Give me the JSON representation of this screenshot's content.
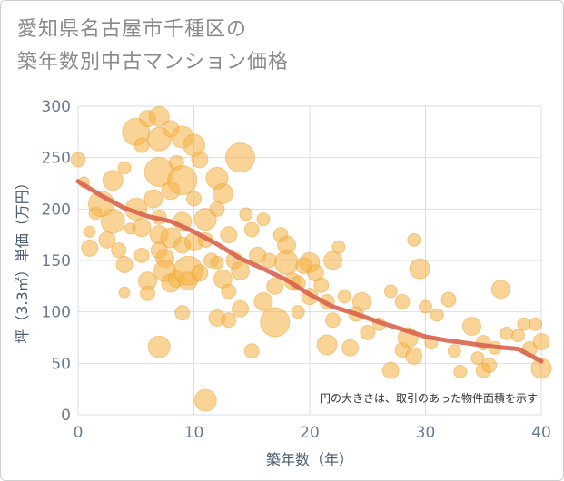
{
  "chart_data": {
    "type": "scatter",
    "title_line1": "愛知県名古屋市千種区の",
    "title_line2": "築年数別中古マンション価格",
    "xlabel": "築年数（年）",
    "ylabel": "坪（3.3㎡）単価（万円）",
    "xlim": [
      0,
      40
    ],
    "ylim": [
      0,
      300
    ],
    "x_ticks": [
      "0",
      "10",
      "20",
      "30",
      "40"
    ],
    "y_ticks": [
      "0",
      "50",
      "100",
      "150",
      "200",
      "250",
      "300"
    ],
    "grid": true,
    "annotation": "円の大きさは、取引のあった物件面積を示す",
    "colors": {
      "bubble": "#f5b041",
      "trend": "#d9634c",
      "grid": "#d8dee9"
    },
    "points": [
      [
        0.0,
        248,
        8
      ],
      [
        0.5,
        226,
        6
      ],
      [
        1.0,
        178,
        6
      ],
      [
        1.0,
        162,
        9
      ],
      [
        1.5,
        196,
        7
      ],
      [
        2.0,
        205,
        14
      ],
      [
        2.5,
        170,
        9
      ],
      [
        3.0,
        228,
        11
      ],
      [
        3.0,
        188,
        13
      ],
      [
        3.5,
        160,
        8
      ],
      [
        4.0,
        146,
        9
      ],
      [
        4.0,
        240,
        7
      ],
      [
        4.0,
        119,
        6
      ],
      [
        4.5,
        181,
        6
      ],
      [
        5.0,
        275,
        15
      ],
      [
        5.0,
        200,
        12
      ],
      [
        5.5,
        262,
        8
      ],
      [
        5.5,
        182,
        10
      ],
      [
        5.5,
        155,
        8
      ],
      [
        6.0,
        288,
        9
      ],
      [
        6.0,
        130,
        10
      ],
      [
        6.0,
        118,
        8
      ],
      [
        6.5,
        210,
        10
      ],
      [
        7.0,
        290,
        11
      ],
      [
        7.0,
        268,
        13
      ],
      [
        7.0,
        236,
        16
      ],
      [
        7.0,
        192,
        8
      ],
      [
        7.0,
        175,
        10
      ],
      [
        7.0,
        160,
        9
      ],
      [
        7.0,
        66,
        12
      ],
      [
        7.5,
        152,
        10
      ],
      [
        7.5,
        140,
        12
      ],
      [
        8.0,
        278,
        9
      ],
      [
        8.0,
        218,
        10
      ],
      [
        8.0,
        172,
        11
      ],
      [
        8.0,
        128,
        10
      ],
      [
        8.5,
        245,
        8
      ],
      [
        8.5,
        132,
        9
      ],
      [
        9.0,
        270,
        12
      ],
      [
        9.0,
        228,
        16
      ],
      [
        9.0,
        188,
        10
      ],
      [
        9.0,
        165,
        9
      ],
      [
        9.0,
        99,
        8
      ],
      [
        9.5,
        140,
        16
      ],
      [
        9.5,
        130,
        10
      ],
      [
        10.0,
        262,
        12
      ],
      [
        10.0,
        210,
        8
      ],
      [
        10.0,
        168,
        10
      ],
      [
        10.5,
        248,
        9
      ],
      [
        10.5,
        138,
        9
      ],
      [
        11.0,
        190,
        12
      ],
      [
        11.0,
        170,
        8
      ],
      [
        11.0,
        14,
        12
      ],
      [
        11.5,
        150,
        8
      ],
      [
        12.0,
        230,
        12
      ],
      [
        12.0,
        200,
        8
      ],
      [
        12.0,
        148,
        7
      ],
      [
        12.0,
        94,
        9
      ],
      [
        12.5,
        215,
        11
      ],
      [
        12.5,
        132,
        10
      ],
      [
        13.0,
        175,
        9
      ],
      [
        13.0,
        120,
        8
      ],
      [
        13.0,
        92,
        8
      ],
      [
        13.5,
        150,
        9
      ],
      [
        14.0,
        250,
        16
      ],
      [
        14.0,
        140,
        10
      ],
      [
        14.0,
        103,
        9
      ],
      [
        14.5,
        195,
        7
      ],
      [
        15.0,
        180,
        8
      ],
      [
        15.0,
        62,
        8
      ],
      [
        15.5,
        155,
        9
      ],
      [
        16.0,
        190,
        7
      ],
      [
        16.0,
        110,
        10
      ],
      [
        16.5,
        150,
        8
      ],
      [
        17.0,
        125,
        9
      ],
      [
        17.0,
        90,
        16
      ],
      [
        17.5,
        175,
        8
      ],
      [
        18.0,
        165,
        10
      ],
      [
        18.0,
        148,
        13
      ],
      [
        18.5,
        130,
        9
      ],
      [
        19.0,
        128,
        8
      ],
      [
        19.0,
        100,
        7
      ],
      [
        19.5,
        145,
        9
      ],
      [
        20.0,
        148,
        11
      ],
      [
        20.0,
        115,
        9
      ],
      [
        20.5,
        138,
        9
      ],
      [
        21.0,
        126,
        8
      ],
      [
        21.5,
        110,
        8
      ],
      [
        21.5,
        68,
        11
      ],
      [
        22.0,
        150,
        10
      ],
      [
        22.0,
        92,
        8
      ],
      [
        22.5,
        163,
        7
      ],
      [
        23.0,
        115,
        7
      ],
      [
        23.5,
        65,
        9
      ],
      [
        24.0,
        98,
        8
      ],
      [
        24.5,
        110,
        10
      ],
      [
        25.0,
        80,
        8
      ],
      [
        26.0,
        88,
        7
      ],
      [
        27.0,
        120,
        7
      ],
      [
        27.0,
        43,
        9
      ],
      [
        28.0,
        110,
        8
      ],
      [
        28.0,
        63,
        8
      ],
      [
        28.5,
        75,
        11
      ],
      [
        29.0,
        170,
        7
      ],
      [
        29.0,
        57,
        9
      ],
      [
        29.5,
        142,
        11
      ],
      [
        30.0,
        105,
        7
      ],
      [
        30.5,
        70,
        7
      ],
      [
        31.0,
        97,
        7
      ],
      [
        32.0,
        112,
        8
      ],
      [
        32.5,
        62,
        7
      ],
      [
        33.0,
        42,
        7
      ],
      [
        34.0,
        86,
        10
      ],
      [
        34.5,
        55,
        7
      ],
      [
        35.0,
        70,
        8
      ],
      [
        35.0,
        43,
        8
      ],
      [
        35.5,
        48,
        8
      ],
      [
        36.0,
        65,
        7
      ],
      [
        36.5,
        122,
        10
      ],
      [
        37.0,
        79,
        7
      ],
      [
        38.0,
        77,
        7
      ],
      [
        38.5,
        88,
        7
      ],
      [
        39.0,
        64,
        8
      ],
      [
        39.5,
        88,
        7
      ],
      [
        40.0,
        71,
        9
      ],
      [
        40.0,
        45,
        11
      ]
    ],
    "trend": [
      [
        0,
        227
      ],
      [
        2,
        213
      ],
      [
        4,
        201
      ],
      [
        6,
        193
      ],
      [
        8,
        188
      ],
      [
        10,
        178
      ],
      [
        12,
        166
      ],
      [
        14,
        152
      ],
      [
        16,
        142
      ],
      [
        18,
        131
      ],
      [
        20,
        117
      ],
      [
        22,
        105
      ],
      [
        24,
        98
      ],
      [
        26,
        90
      ],
      [
        28,
        83
      ],
      [
        30,
        76
      ],
      [
        32,
        72
      ],
      [
        34,
        69
      ],
      [
        36,
        66
      ],
      [
        38,
        64
      ],
      [
        40,
        52
      ]
    ]
  }
}
